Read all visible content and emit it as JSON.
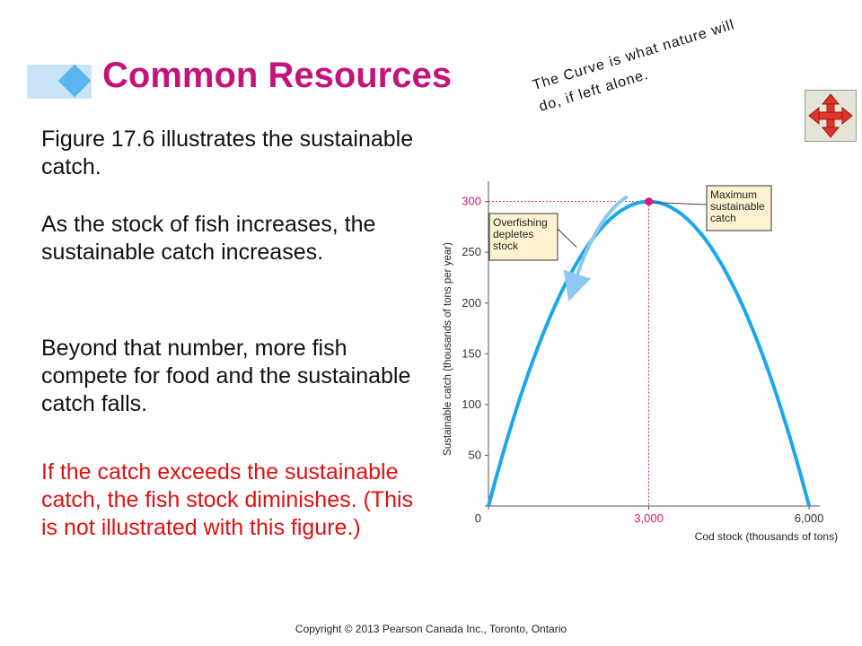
{
  "slide": {
    "title": "Common Resources",
    "bullets": [
      "Figure 17.6 illustrates the sustainable catch.",
      "As the stock of fish increases, the sustainable catch increases.",
      "Beyond that number, more fish compete for food and the sustainable catch falls.",
      "If the catch exceeds  the sustainable catch, the fish stock diminishes. (This is not illustrated with this figure.)"
    ],
    "annotation": [
      "The Curve is what nature will",
      "do, if left alone."
    ],
    "copyright": "Copyright © 2013 Pearson Canada Inc., Toronto, Ontario",
    "move_icon": "four-way-move-arrows-icon",
    "colors": {
      "title": "#c4137b",
      "red_text": "#e01010",
      "curve": "#1aa7ec",
      "highlight": "#e0147a",
      "callout_fill": "#fdf2d0"
    }
  },
  "chart_data": {
    "type": "line",
    "xlabel": "Cod stock (thousands of tons)",
    "ylabel": "Sustainable catch (thousands of tons per year)",
    "xlim": [
      0,
      6200
    ],
    "ylim": [
      0,
      320
    ],
    "x_ticks": [
      0,
      3000,
      6000
    ],
    "x_tick_labels": [
      "0",
      "3,000",
      "6,000"
    ],
    "y_ticks": [
      0,
      50,
      100,
      150,
      200,
      250,
      300
    ],
    "y_tick_labels": [
      "",
      "50",
      "100",
      "150",
      "200",
      "250",
      "300"
    ],
    "grid": false,
    "series": [
      {
        "x": [
          0,
          500,
          1000,
          1500,
          2000,
          2500,
          3000,
          3500,
          4000,
          4500,
          5000,
          5500,
          6000
        ],
        "y": [
          0,
          92,
          167,
          225,
          267,
          292,
          300,
          292,
          267,
          225,
          167,
          92,
          0
        ]
      }
    ],
    "highlight_point": {
      "x": 3000,
      "y": 300
    },
    "annotations": [
      {
        "lines": [
          "Maximum",
          "sustainable",
          "catch"
        ],
        "points_to": {
          "x": 3000,
          "y": 300
        }
      },
      {
        "lines": [
          "Overfishing",
          "depletes",
          "stock"
        ],
        "points_to": {
          "x": 1700,
          "y": 245
        }
      }
    ]
  }
}
